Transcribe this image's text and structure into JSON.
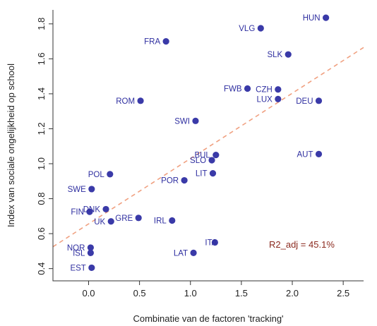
{
  "chart_data": {
    "type": "scatter",
    "title": "",
    "xlabel": "Combinatie van de factoren 'tracking'",
    "ylabel": "Index van sociale ongelijkheid op school",
    "xlim": [
      -0.35,
      2.7
    ],
    "ylim": [
      0.33,
      1.88
    ],
    "xticks": [
      "0.0",
      "0.5",
      "1.0",
      "1.5",
      "2.0",
      "2.5"
    ],
    "xtick_values": [
      0.0,
      0.5,
      1.0,
      1.5,
      2.0,
      2.5
    ],
    "yticks": [
      "0.4",
      "0.6",
      "0.8",
      "1.0",
      "1.2",
      "1.4",
      "1.6",
      "1.8"
    ],
    "ytick_values": [
      0.4,
      0.6,
      0.8,
      1.0,
      1.2,
      1.4,
      1.6,
      1.8
    ],
    "point_color": "#3a3aa8",
    "fit_color": "#f0a080",
    "annotation_color": "#8b2a1f",
    "annotation": "R2_adj = 45.1%",
    "fit_line": {
      "x": [
        -0.35,
        2.7
      ],
      "y": [
        0.525,
        1.665
      ]
    },
    "points": [
      {
        "label": "HUN",
        "x": 2.33,
        "y": 1.835,
        "anchor": "end"
      },
      {
        "label": "VLG",
        "x": 1.69,
        "y": 1.775,
        "anchor": "end"
      },
      {
        "label": "FRA",
        "x": 0.76,
        "y": 1.7,
        "anchor": "end"
      },
      {
        "label": "SLK",
        "x": 1.96,
        "y": 1.625,
        "anchor": "end"
      },
      {
        "label": "FWB",
        "x": 1.56,
        "y": 1.43,
        "anchor": "end"
      },
      {
        "label": "CZH",
        "x": 1.86,
        "y": 1.425,
        "anchor": "end"
      },
      {
        "label": "LUX",
        "x": 1.86,
        "y": 1.37,
        "anchor": "end"
      },
      {
        "label": "DEU",
        "x": 2.26,
        "y": 1.36,
        "anchor": "end"
      },
      {
        "label": "ROM",
        "x": 0.51,
        "y": 1.36,
        "anchor": "end"
      },
      {
        "label": "SWI",
        "x": 1.05,
        "y": 1.245,
        "anchor": "end"
      },
      {
        "label": "BUL",
        "x": 1.25,
        "y": 1.05,
        "anchor": "end"
      },
      {
        "label": "AUT",
        "x": 2.26,
        "y": 1.055,
        "anchor": "end"
      },
      {
        "label": "SLO",
        "x": 1.21,
        "y": 1.02,
        "anchor": "end"
      },
      {
        "label": "LIT",
        "x": 1.22,
        "y": 0.945,
        "anchor": "end"
      },
      {
        "label": "POL",
        "x": 0.21,
        "y": 0.94,
        "anchor": "end"
      },
      {
        "label": "POR",
        "x": 0.94,
        "y": 0.905,
        "anchor": "end"
      },
      {
        "label": "SWE",
        "x": 0.03,
        "y": 0.855,
        "anchor": "end"
      },
      {
        "label": "DNK",
        "x": 0.17,
        "y": 0.74,
        "anchor": "end"
      },
      {
        "label": "FIN",
        "x": 0.01,
        "y": 0.725,
        "anchor": "end"
      },
      {
        "label": "GRE",
        "x": 0.49,
        "y": 0.69,
        "anchor": "end"
      },
      {
        "label": "IRL",
        "x": 0.82,
        "y": 0.675,
        "anchor": "end"
      },
      {
        "label": "UK",
        "x": 0.22,
        "y": 0.67,
        "anchor": "end"
      },
      {
        "label": "ITA",
        "x": 1.24,
        "y": 0.55,
        "anchor": "start"
      },
      {
        "label": "NOR",
        "x": 0.02,
        "y": 0.52,
        "anchor": "end"
      },
      {
        "label": "LAT",
        "x": 1.03,
        "y": 0.49,
        "anchor": "end"
      },
      {
        "label": "ISL",
        "x": 0.02,
        "y": 0.49,
        "anchor": "end"
      },
      {
        "label": "EST",
        "x": 0.03,
        "y": 0.405,
        "anchor": "end"
      }
    ]
  }
}
